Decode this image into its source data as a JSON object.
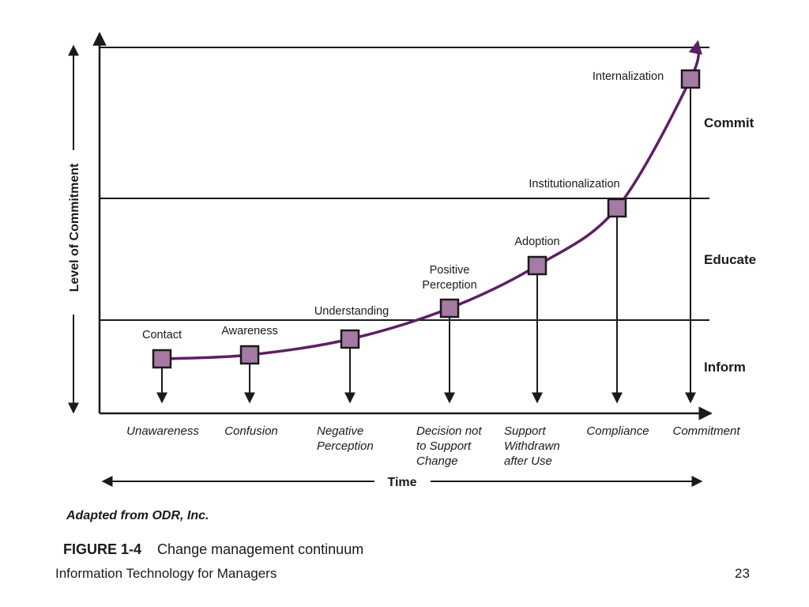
{
  "diagram": {
    "y_axis_title": "Level of Commitment",
    "x_axis_title": "Time",
    "bands": [
      {
        "label": "Commit"
      },
      {
        "label": "Educate"
      },
      {
        "label": "Inform"
      }
    ],
    "stages": [
      {
        "label": [
          "Contact"
        ],
        "outcome": [
          "Unawareness"
        ]
      },
      {
        "label": [
          "Awareness"
        ],
        "outcome": [
          "Confusion"
        ]
      },
      {
        "label": [
          "Understanding"
        ],
        "outcome": [
          "Negative",
          "Perception"
        ]
      },
      {
        "label": [
          "Positive",
          "Perception"
        ],
        "outcome": [
          "Decision not",
          "to Support",
          "Change"
        ]
      },
      {
        "label": [
          "Adoption"
        ],
        "outcome": [
          "Support",
          "Withdrawn",
          "after Use"
        ]
      },
      {
        "label": [
          "Institutionalization"
        ],
        "outcome": [
          "Compliance"
        ]
      },
      {
        "label": [
          "Internalization"
        ],
        "outcome": [
          "Commitment"
        ]
      }
    ],
    "colors": {
      "curve": "#5e1f63",
      "marker_fill": "#a57aa4",
      "line": "#1a1a1a"
    }
  },
  "credit": "Adapted from ODR, Inc.",
  "caption": {
    "number": "FIGURE 1-4",
    "text": "Change management continuum"
  },
  "footer": {
    "left": "Information Technology for Managers",
    "right": "23"
  }
}
